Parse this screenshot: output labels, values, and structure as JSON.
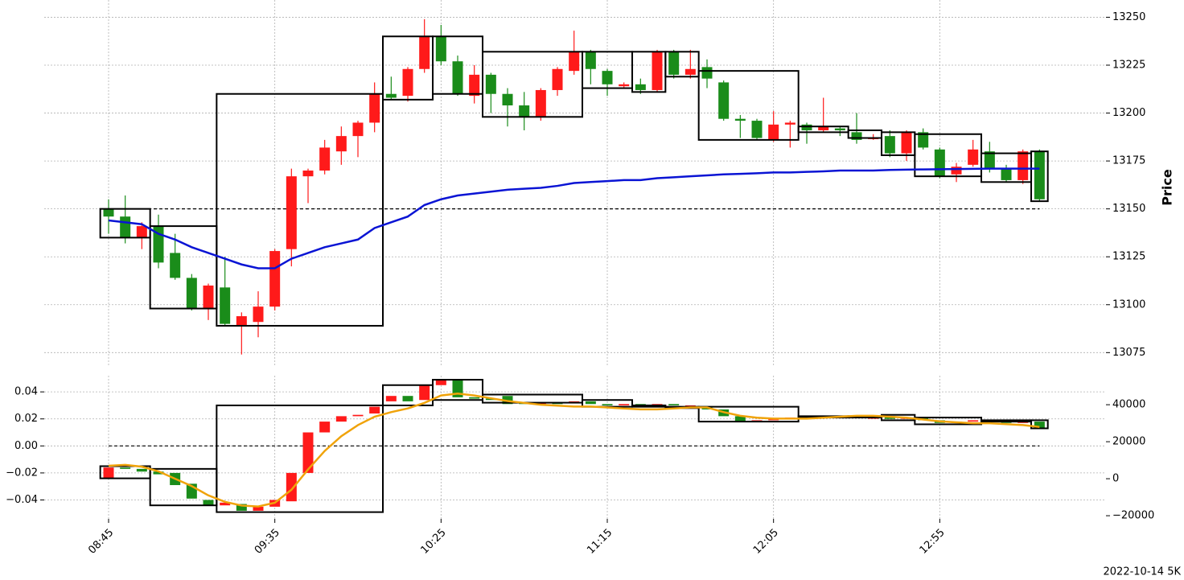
{
  "chart_data": [
    {
      "type": "candlestick",
      "categories": [
        "08:45",
        null,
        null,
        null,
        null,
        null,
        null,
        null,
        null,
        null,
        "09:35",
        null,
        null,
        null,
        null,
        null,
        null,
        null,
        null,
        null,
        "10:25",
        null,
        null,
        null,
        null,
        null,
        null,
        null,
        null,
        null,
        "11:15",
        null,
        null,
        null,
        null,
        null,
        null,
        null,
        null,
        null,
        "12:05",
        null,
        null,
        null,
        null,
        null,
        null,
        null,
        null,
        null,
        "12:55",
        null,
        null,
        null,
        null,
        null,
        null
      ],
      "open": [
        13150,
        13146,
        13135,
        13141,
        13127,
        13114,
        13098,
        13109,
        13089,
        13091,
        13099,
        13129,
        13167,
        13170,
        13180,
        13188,
        13195,
        13210,
        13209,
        13223,
        13240,
        13227,
        13209,
        13220,
        13210,
        13204,
        13198,
        13212,
        13222,
        13232,
        13222,
        13214,
        13215,
        13212,
        13232,
        13220,
        13224,
        13216,
        13197,
        13196,
        13186,
        13194,
        13194,
        13191,
        13192,
        13190,
        13187,
        13188,
        13179,
        13190,
        13181,
        13168,
        13173,
        13180,
        13171,
        13165,
        13180
      ],
      "high": [
        13155,
        13157,
        13143,
        13147,
        13137,
        13116,
        13111,
        13125,
        13096,
        13107,
        13129,
        13171,
        13171,
        13186,
        13193,
        13196,
        13216,
        13219,
        13224,
        13249,
        13246,
        13230,
        13225,
        13221,
        13213,
        13211,
        13213,
        13224,
        13243,
        13233,
        13223,
        13216,
        13218,
        13233,
        13233,
        13233,
        13228,
        13217,
        13199,
        13197,
        13201,
        13196,
        13195,
        13208,
        13193,
        13200,
        13189,
        13191,
        13191,
        13192,
        13182,
        13174,
        13186,
        13185,
        13173,
        13181,
        13181
      ],
      "low": [
        13137,
        13132,
        13129,
        13119,
        13113,
        13097,
        13092,
        13089,
        13074,
        13083,
        13097,
        13120,
        13153,
        13168,
        13173,
        13177,
        13190,
        13207,
        13206,
        13221,
        13225,
        13209,
        13205,
        13200,
        13193,
        13191,
        13196,
        13209,
        13220,
        13215,
        13209,
        13213,
        13210,
        13211,
        13218,
        13218,
        13213,
        13196,
        13187,
        13186,
        13185,
        13182,
        13184,
        13190,
        13188,
        13184,
        13186,
        13177,
        13175,
        13181,
        13166,
        13164,
        13172,
        13169,
        13164,
        13163,
        13154
      ],
      "close": [
        13146,
        13135,
        13141,
        13122,
        13114,
        13098,
        13110,
        13090,
        13094,
        13099,
        13128,
        13167,
        13170,
        13182,
        13188,
        13195,
        13210,
        13208,
        13223,
        13240,
        13227,
        13210,
        13220,
        13210,
        13204,
        13198,
        13212,
        13223,
        13232,
        13223,
        13215,
        13215,
        13212,
        13232,
        13220,
        13223,
        13218,
        13197,
        13196,
        13187,
        13194,
        13195,
        13191,
        13193,
        13191,
        13186,
        13187,
        13179,
        13190,
        13182,
        13167,
        13172,
        13181,
        13171,
        13165,
        13180,
        13155
      ],
      "up_color": "#ff1a1a",
      "down_color": "#1a8c1a",
      "boxes": [
        {
          "start": 0,
          "end": 2,
          "top": 13150,
          "bottom": 13135
        },
        {
          "start": 3,
          "end": 6,
          "top": 13141,
          "bottom": 13098
        },
        {
          "start": 7,
          "end": 16,
          "top": 13210,
          "bottom": 13089
        },
        {
          "start": 17,
          "end": 19,
          "top": 13240,
          "bottom": 13207
        },
        {
          "start": 20,
          "end": 22,
          "top": 13240,
          "bottom": 13210
        },
        {
          "start": 23,
          "end": 28,
          "top": 13232,
          "bottom": 13198
        },
        {
          "start": 29,
          "end": 31,
          "top": 13232,
          "bottom": 13213
        },
        {
          "start": 32,
          "end": 33,
          "top": 13232,
          "bottom": 13211
        },
        {
          "start": 34,
          "end": 35,
          "top": 13232,
          "bottom": 13219
        },
        {
          "start": 36,
          "end": 41,
          "top": 13222,
          "bottom": 13186
        },
        {
          "start": 42,
          "end": 44,
          "top": 13193,
          "bottom": 13190
        },
        {
          "start": 45,
          "end": 46,
          "top": 13191,
          "bottom": 13187
        },
        {
          "start": 47,
          "end": 48,
          "top": 13190,
          "bottom": 13178
        },
        {
          "start": 49,
          "end": 52,
          "top": 13189,
          "bottom": 13167
        },
        {
          "start": 53,
          "end": 55,
          "top": 13179,
          "bottom": 13164
        },
        {
          "start": 56,
          "end": 56,
          "top": 13180,
          "bottom": 13154
        }
      ],
      "series": [
        {
          "color": "#0a14d4",
          "values": [
            13144,
            13143,
            13142,
            13137,
            13134,
            13130,
            13127,
            13124,
            13121,
            13119,
            13119,
            13124,
            13127,
            13130,
            13132,
            13134,
            13140,
            13143,
            13146,
            13152,
            13155,
            13157,
            13158,
            13159,
            13160,
            13160.5,
            13161,
            13162,
            13163.5,
            13164,
            13164.5,
            13165,
            13165,
            13166,
            13166.5,
            13167,
            13167.5,
            13168,
            13168.3,
            13168.6,
            13169,
            13169,
            13169.3,
            13169.6,
            13170,
            13170,
            13170,
            13170.3,
            13170.5,
            13170.6,
            13170.7,
            13170.8,
            13170.9,
            13171,
            13171,
            13171,
            13171
          ]
        }
      ],
      "hline": 13150,
      "ylim": [
        13068,
        13259
      ],
      "yticks": [
        13075,
        13100,
        13125,
        13150,
        13175,
        13200,
        13225,
        13250
      ],
      "y_label": "Price",
      "grid": true
    },
    {
      "type": "candlestick",
      "open": [
        -0.024,
        -0.016,
        -0.017,
        -0.019,
        -0.02,
        -0.028,
        -0.04,
        -0.044,
        -0.043,
        -0.048,
        -0.045,
        -0.041,
        -0.02,
        0.01,
        0.018,
        0.022,
        0.024,
        0.033,
        0.037,
        0.034,
        0.045,
        0.049,
        0.036,
        0.035,
        0.037,
        0.032,
        0.031,
        0.032,
        0.032,
        0.033,
        0.031,
        0.03,
        0.031,
        0.03,
        0.031,
        0.03,
        0.029,
        0.027,
        0.022,
        0.019,
        0.019,
        0.02,
        0.022,
        0.021,
        0.022,
        0.022,
        0.021,
        0.022,
        0.02,
        0.021,
        0.019,
        0.017,
        0.018,
        0.019,
        0.018,
        0.017,
        0.018
      ],
      "close": [
        -0.016,
        -0.017,
        -0.019,
        -0.021,
        -0.029,
        -0.039,
        -0.044,
        -0.042,
        -0.048,
        -0.045,
        -0.04,
        -0.02,
        0.01,
        0.018,
        0.022,
        0.023,
        0.029,
        0.037,
        0.033,
        0.045,
        0.049,
        0.036,
        0.035,
        0.034,
        0.031,
        0.031,
        0.032,
        0.031,
        0.033,
        0.031,
        0.03,
        0.031,
        0.03,
        0.031,
        0.03,
        0.03,
        0.027,
        0.022,
        0.018,
        0.019,
        0.02,
        0.021,
        0.021,
        0.022,
        0.021,
        0.021,
        0.021,
        0.02,
        0.021,
        0.019,
        0.017,
        0.018,
        0.019,
        0.018,
        0.017,
        0.018,
        0.013
      ],
      "up_color": "#ff1a1a",
      "down_color": "#1a8c1a",
      "boxes": [
        {
          "start": 0,
          "end": 2,
          "top": -0.015,
          "bottom": -0.024
        },
        {
          "start": 3,
          "end": 6,
          "top": -0.017,
          "bottom": -0.044
        },
        {
          "start": 7,
          "end": 16,
          "top": 0.03,
          "bottom": -0.049
        },
        {
          "start": 17,
          "end": 19,
          "top": 0.045,
          "bottom": 0.03
        },
        {
          "start": 20,
          "end": 22,
          "top": 0.049,
          "bottom": 0.034
        },
        {
          "start": 23,
          "end": 28,
          "top": 0.038,
          "bottom": 0.032
        },
        {
          "start": 29,
          "end": 31,
          "top": 0.034,
          "bottom": 0.029
        },
        {
          "start": 32,
          "end": 33,
          "top": 0.03,
          "bottom": 0.029
        },
        {
          "start": 34,
          "end": 35,
          "top": 0.029,
          "bottom": 0.028
        },
        {
          "start": 36,
          "end": 41,
          "top": 0.029,
          "bottom": 0.018
        },
        {
          "start": 42,
          "end": 44,
          "top": 0.022,
          "bottom": 0.021
        },
        {
          "start": 45,
          "end": 46,
          "top": 0.022,
          "bottom": 0.021
        },
        {
          "start": 47,
          "end": 48,
          "top": 0.023,
          "bottom": 0.019
        },
        {
          "start": 49,
          "end": 52,
          "top": 0.021,
          "bottom": 0.016
        },
        {
          "start": 53,
          "end": 55,
          "top": 0.019,
          "bottom": 0.018
        },
        {
          "start": 56,
          "end": 56,
          "top": 0.019,
          "bottom": 0.013
        }
      ],
      "series": [
        {
          "color": "#f0a30a",
          "axis": "y2",
          "values": [
            7000,
            7500,
            6500,
            4000,
            0,
            -4000,
            -9000,
            -12500,
            -14500,
            -15000,
            -13000,
            -6000,
            5000,
            15000,
            23000,
            29000,
            33500,
            36000,
            38000,
            41000,
            45000,
            46000,
            45000,
            43500,
            42000,
            41000,
            40000,
            39500,
            39000,
            39000,
            38500,
            38000,
            37500,
            37500,
            38000,
            38500,
            38500,
            36000,
            34000,
            33000,
            32500,
            32500,
            32500,
            33000,
            33500,
            34000,
            34000,
            33500,
            33000,
            32000,
            31000,
            30500,
            30000,
            30000,
            29500,
            29000,
            28000
          ]
        }
      ],
      "hline": 0,
      "ylim": [
        -0.054,
        0.052
      ],
      "yticks": [
        {
          "value": -0.04,
          "label": "−0.04"
        },
        {
          "value": -0.02,
          "label": "−0.02"
        },
        {
          "value": 0,
          "label": "0.00"
        },
        0.02,
        0.04
      ],
      "y2lim": [
        -21700,
        55700
      ],
      "y2ticks": [
        {
          "value": -20000,
          "label": "−20000"
        },
        0,
        20000,
        40000
      ],
      "grid": true
    }
  ],
  "caption": "2022-10-14 5K"
}
